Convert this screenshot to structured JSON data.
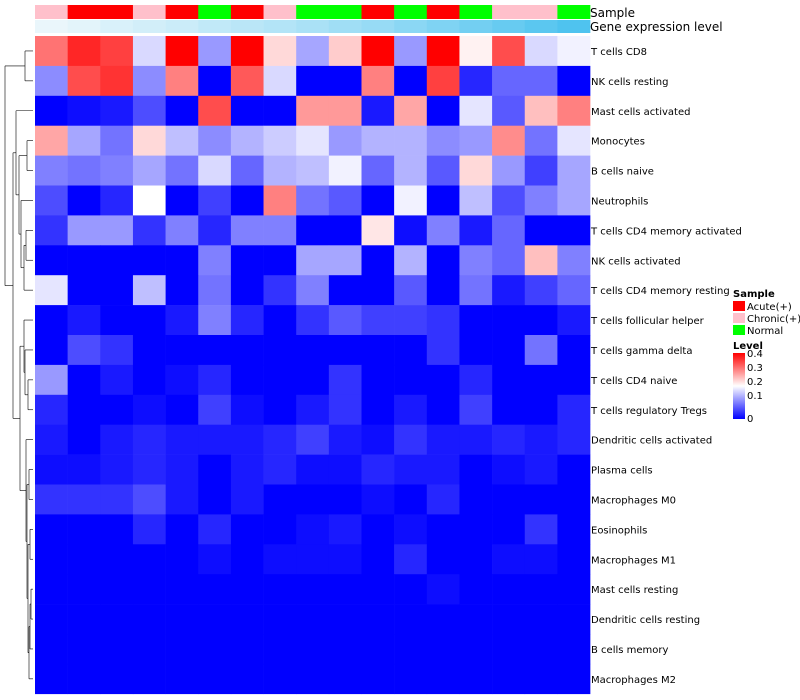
{
  "chart_data": {
    "type": "heatmap",
    "annotation_row_labels": [
      "Sample",
      "Gene expression level"
    ],
    "sample_groups": [
      "Chronic(+)",
      "Acute(+)",
      "Acute(+)",
      "Chronic(+)",
      "Acute(+)",
      "Normal",
      "Acute(+)",
      "Chronic(+)",
      "Normal",
      "Normal",
      "Acute(+)",
      "Normal",
      "Acute(+)",
      "Normal",
      "Chronic(+)",
      "Chronic(+)",
      "Normal"
    ],
    "gene_expression_level": [
      0.05,
      0.08,
      0.12,
      0.15,
      0.18,
      0.22,
      0.25,
      0.28,
      0.32,
      0.36,
      0.4,
      0.45,
      0.5,
      0.55,
      0.6,
      0.65,
      0.7
    ],
    "rows": [
      "T cells CD8",
      "NK cells resting",
      "Mast cells activated",
      "Monocytes",
      "B cells naive",
      "Neutrophils",
      "T cells CD4 memory activated",
      "NK cells activated",
      "T cells CD4 memory resting",
      "T cells follicular helper",
      "T cells gamma delta",
      "T cells CD4 naive",
      "T cells regulatory  Tregs",
      "Dendritic cells activated",
      "Plasma cells",
      "Macrophages M0",
      "Eosinophils",
      "Macrophages M1",
      "Mast cells resting",
      "Dendritic cells resting",
      "B cells memory",
      "Macrophages M2"
    ],
    "values": [
      [
        0.31,
        0.37,
        0.35,
        0.17,
        0.4,
        0.12,
        0.4,
        0.23,
        0.13,
        0.24,
        0.4,
        0.12,
        0.4,
        0.21,
        0.34,
        0.17,
        0.19
      ],
      [
        0.11,
        0.34,
        0.36,
        0.11,
        0.3,
        0.0,
        0.33,
        0.17,
        0.0,
        0.0,
        0.3,
        0.0,
        0.35,
        0.03,
        0.08,
        0.08,
        0.0
      ],
      [
        0.0,
        0.01,
        0.02,
        0.06,
        0.0,
        0.34,
        0.0,
        0.0,
        0.28,
        0.28,
        0.02,
        0.27,
        0.0,
        0.18,
        0.07,
        0.25,
        0.3
      ],
      [
        0.27,
        0.13,
        0.09,
        0.23,
        0.15,
        0.11,
        0.14,
        0.16,
        0.18,
        0.12,
        0.14,
        0.14,
        0.11,
        0.12,
        0.29,
        0.09,
        0.18
      ],
      [
        0.1,
        0.09,
        0.1,
        0.13,
        0.09,
        0.17,
        0.08,
        0.14,
        0.15,
        0.19,
        0.08,
        0.14,
        0.07,
        0.23,
        0.12,
        0.05,
        0.13
      ],
      [
        0.06,
        0.0,
        0.03,
        0.2,
        0.0,
        0.05,
        0.0,
        0.3,
        0.09,
        0.07,
        0.0,
        0.19,
        0.0,
        0.15,
        0.06,
        0.1,
        0.13
      ],
      [
        0.04,
        0.12,
        0.12,
        0.04,
        0.1,
        0.03,
        0.1,
        0.1,
        0.0,
        0.0,
        0.22,
        0.01,
        0.1,
        0.02,
        0.08,
        0.0,
        0.0
      ],
      [
        0.0,
        0.0,
        0.0,
        0.0,
        0.0,
        0.1,
        0.0,
        0.0,
        0.13,
        0.13,
        0.0,
        0.14,
        0.0,
        0.1,
        0.08,
        0.25,
        0.1
      ],
      [
        0.18,
        0.0,
        0.0,
        0.15,
        0.0,
        0.09,
        0.0,
        0.04,
        0.1,
        0.0,
        0.0,
        0.07,
        0.0,
        0.09,
        0.02,
        0.05,
        0.08
      ],
      [
        0.0,
        0.02,
        0.0,
        0.0,
        0.02,
        0.1,
        0.03,
        0.0,
        0.04,
        0.07,
        0.05,
        0.05,
        0.04,
        0.0,
        0.0,
        0.0,
        0.02
      ],
      [
        0.0,
        0.06,
        0.04,
        0.0,
        0.0,
        0.0,
        0.0,
        0.0,
        0.0,
        0.0,
        0.0,
        0.0,
        0.04,
        0.0,
        0.0,
        0.09,
        0.0
      ],
      [
        0.12,
        0.0,
        0.02,
        0.0,
        0.01,
        0.03,
        0.0,
        0.0,
        0.0,
        0.04,
        0.0,
        0.0,
        0.0,
        0.03,
        0.0,
        0.0,
        0.0
      ],
      [
        0.03,
        0.0,
        0.0,
        0.01,
        0.0,
        0.05,
        0.01,
        0.0,
        0.02,
        0.04,
        0.0,
        0.02,
        0.0,
        0.05,
        0.0,
        0.0,
        0.03
      ],
      [
        0.02,
        0.0,
        0.02,
        0.03,
        0.02,
        0.02,
        0.02,
        0.03,
        0.05,
        0.02,
        0.01,
        0.04,
        0.02,
        0.02,
        0.03,
        0.02,
        0.03
      ],
      [
        0.01,
        0.01,
        0.02,
        0.03,
        0.02,
        0.0,
        0.02,
        0.03,
        0.01,
        0.01,
        0.03,
        0.02,
        0.02,
        0.0,
        0.01,
        0.02,
        0.0
      ],
      [
        0.04,
        0.04,
        0.04,
        0.06,
        0.02,
        0.0,
        0.02,
        0.0,
        0.0,
        0.0,
        0.01,
        0.0,
        0.03,
        0.0,
        0.0,
        0.0,
        0.0
      ],
      [
        0.0,
        0.0,
        0.0,
        0.03,
        0.0,
        0.03,
        0.0,
        0.0,
        0.01,
        0.02,
        0.0,
        0.01,
        0.0,
        0.0,
        0.0,
        0.04,
        0.0
      ],
      [
        0.0,
        0.0,
        0.0,
        0.0,
        0.0,
        0.01,
        0.0,
        0.01,
        0.01,
        0.01,
        0.0,
        0.03,
        0.0,
        0.0,
        0.01,
        0.01,
        0.0
      ],
      [
        0.0,
        0.0,
        0.0,
        0.0,
        0.0,
        0.0,
        0.0,
        0.0,
        0.0,
        0.0,
        0.0,
        0.0,
        0.01,
        0.0,
        0.0,
        0.0,
        0.0
      ],
      [
        0.0,
        0.0,
        0.0,
        0.0,
        0.0,
        0.0,
        0.0,
        0.0,
        0.0,
        0.0,
        0.0,
        0.0,
        0.0,
        0.0,
        0.0,
        0.0,
        0.0
      ],
      [
        0.0,
        0.0,
        0.0,
        0.0,
        0.0,
        0.0,
        0.0,
        0.0,
        0.0,
        0.0,
        0.0,
        0.0,
        0.0,
        0.0,
        0.0,
        0.0,
        0.0
      ],
      [
        0.0,
        0.0,
        0.0,
        0.0,
        0.0,
        0.0,
        0.0,
        0.0,
        0.0,
        0.0,
        0.0,
        0.0,
        0.0,
        0.0,
        0.0,
        0.0,
        0.0
      ]
    ],
    "legend": {
      "sample_title": "Sample",
      "sample_entries": [
        "Acute(+)",
        "Chronic(+)",
        "Normal"
      ],
      "level_title": "Level",
      "level_ticks": [
        "0.4",
        "0.3",
        "0.2",
        "0.1",
        "0"
      ],
      "level_range": [
        0,
        0.4
      ]
    },
    "colors": {
      "Acute(+)": "#ff0000",
      "Chronic(+)": "#ffc0cb",
      "Normal": "#00ff00",
      "low": "#0000ff",
      "mid": "#ffffff",
      "high": "#ff0000",
      "expr_low": "#eaf6fb",
      "expr_high": "#4fc3ef"
    }
  }
}
